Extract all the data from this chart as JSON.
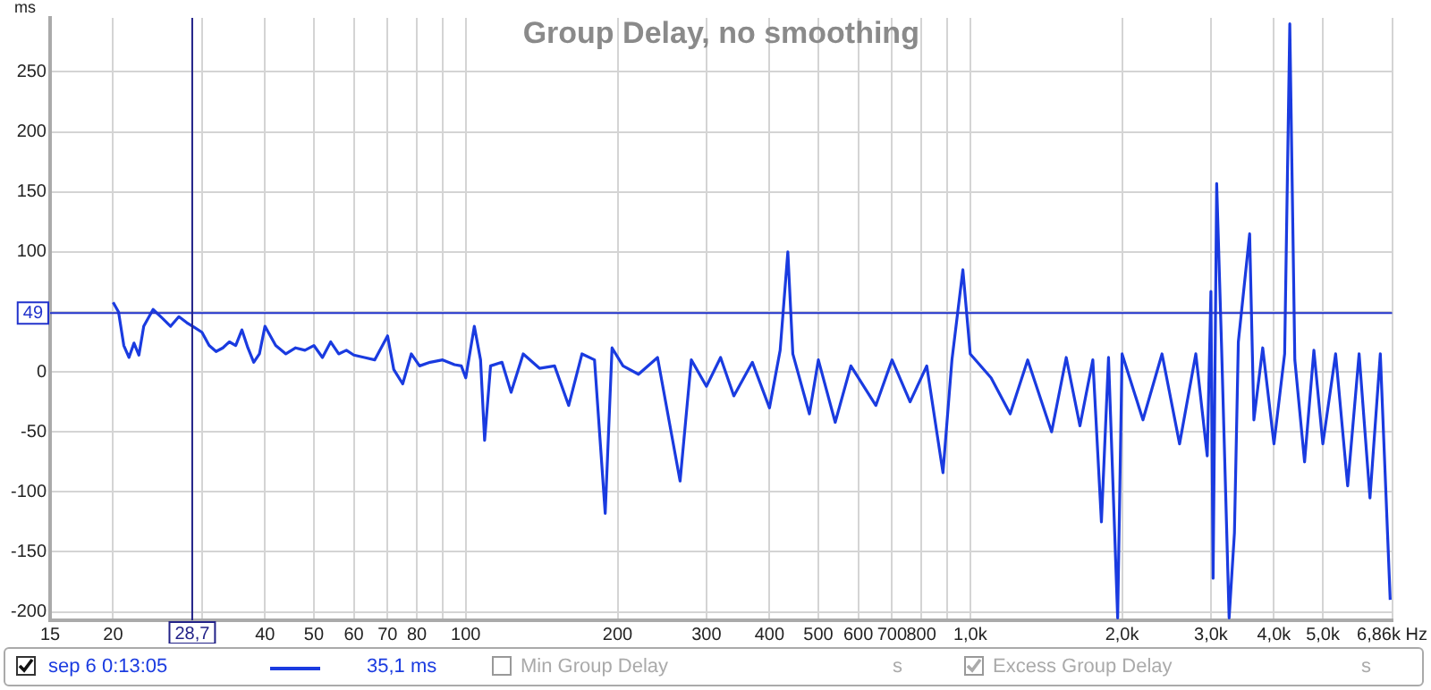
{
  "chart_data": {
    "type": "line",
    "title": "Group Delay, no smoothing",
    "ylabel": "ms",
    "log": "x",
    "grid": true,
    "legend": "bottom",
    "marker": "none",
    "line_style": "solid",
    "xlim": [
      15,
      6860
    ],
    "ylim": [
      -207,
      295
    ],
    "xticks": [
      15,
      20,
      {
        "value": 30,
        "label": null
      },
      40,
      50,
      60,
      70,
      80,
      {
        "value": 90,
        "label": null
      },
      100,
      200,
      300,
      400,
      500,
      600,
      700,
      800,
      {
        "value": 900,
        "label": null
      },
      {
        "value": 1000,
        "label": "1,0k"
      },
      {
        "value": 2000,
        "label": "2,0k"
      },
      {
        "value": 3000,
        "label": "3,0k"
      },
      {
        "value": 4000,
        "label": "4,0k"
      },
      {
        "value": 5000,
        "label": "5,0k"
      },
      {
        "value": 6860,
        "label": "6,86k Hz"
      }
    ],
    "yticks": [
      -200,
      -150,
      -100,
      -50,
      0,
      {
        "value": 50,
        "label": null
      },
      100,
      150,
      200,
      250
    ],
    "ref_lines": [
      {
        "axis": "y",
        "value": 49,
        "label": "49",
        "color": "#2233cc"
      },
      {
        "axis": "x",
        "value": 28.7,
        "label": "28,7",
        "color": "#222288"
      }
    ],
    "annotations": [
      "35,1 ms",
      "Min Group Delay",
      "s",
      "Excess Group Delay",
      "s"
    ],
    "series": [
      {
        "name": "sep 6 0:13:05",
        "color": "#1a3be0",
        "x": [
          20,
          20.5,
          21,
          21.5,
          22,
          22.5,
          23,
          24,
          25,
          26,
          27,
          28,
          29,
          30,
          31,
          32,
          33,
          34,
          35,
          36,
          37,
          38,
          39,
          40,
          42,
          44,
          46,
          48,
          50,
          52,
          54,
          56,
          58,
          60,
          63,
          66,
          70,
          72,
          75,
          78,
          81,
          85,
          90,
          95,
          98,
          100,
          104,
          107,
          109,
          112,
          118,
          123,
          130,
          140,
          150,
          160,
          170,
          180,
          189,
          195,
          205,
          220,
          240,
          266,
          280,
          300,
          320,
          340,
          370,
          400,
          420,
          435,
          445,
          480,
          500,
          540,
          580,
          650,
          700,
          760,
          820,
          883,
          920,
          967,
          1000,
          1100,
          1200,
          1300,
          1450,
          1550,
          1650,
          1750,
          1820,
          1880,
          1960,
          2000,
          2200,
          2400,
          2600,
          2800,
          2950,
          3000,
          3030,
          3080,
          3150,
          3260,
          3340,
          3400,
          3580,
          3650,
          3800,
          4000,
          4200,
          4300,
          4400,
          4600,
          4800,
          5000,
          5300,
          5600,
          5900,
          6200,
          6500,
          6800
        ],
        "values": [
          58,
          50,
          22,
          12,
          24,
          14,
          38,
          52,
          45,
          38,
          46,
          41,
          37,
          33,
          22,
          17,
          20,
          25,
          22,
          35,
          20,
          8,
          15,
          38,
          22,
          15,
          20,
          18,
          22,
          12,
          25,
          15,
          18,
          14,
          12,
          10,
          30,
          2,
          -10,
          15,
          5,
          8,
          10,
          6,
          5,
          -5,
          38,
          10,
          -57,
          5,
          8,
          -17,
          15,
          3,
          5,
          -28,
          15,
          10,
          -118,
          20,
          5,
          -2,
          12,
          -91,
          10,
          -12,
          12,
          -20,
          8,
          -30,
          18,
          100,
          15,
          -35,
          10,
          -42,
          5,
          -28,
          10,
          -25,
          5,
          -84,
          10,
          85,
          15,
          -5,
          -35,
          10,
          -50,
          12,
          -45,
          10,
          -125,
          12,
          -205,
          15,
          -40,
          15,
          -60,
          15,
          -70,
          67,
          -172,
          157,
          20,
          -205,
          -134,
          25,
          115,
          -40,
          20,
          -60,
          15,
          290,
          10,
          -75,
          18,
          -60,
          15,
          -95,
          15,
          -105,
          15,
          -190
        ]
      }
    ]
  }
}
